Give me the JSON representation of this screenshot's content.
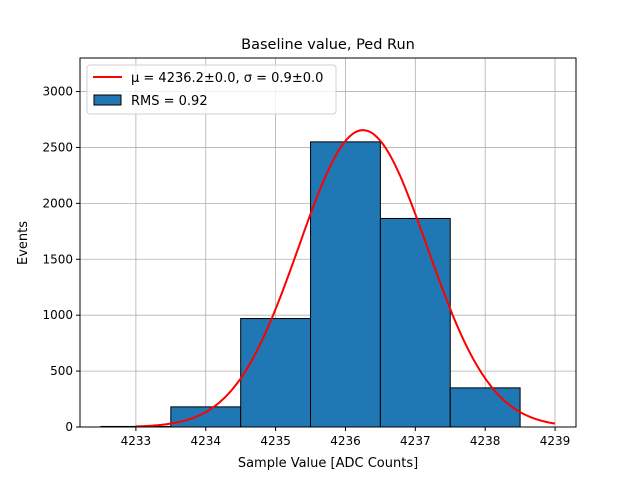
{
  "chart_data": {
    "type": "bar",
    "title": "Baseline value, Ped Run",
    "xlabel": "Sample Value [ADC Counts]",
    "ylabel": "Events",
    "xlim": [
      4232.2,
      4239.3
    ],
    "ylim": [
      0,
      3300
    ],
    "xticks": [
      4233,
      4234,
      4235,
      4236,
      4237,
      4238,
      4239
    ],
    "yticks": [
      0,
      500,
      1000,
      1500,
      2000,
      2500,
      3000
    ],
    "grid": true,
    "legend_position": "top-left",
    "bins": [
      {
        "low": 4232.5,
        "high": 4233.5,
        "value": 5
      },
      {
        "low": 4233.5,
        "high": 4234.5,
        "value": 180
      },
      {
        "low": 4234.5,
        "high": 4235.5,
        "value": 970
      },
      {
        "low": 4235.5,
        "high": 4236.5,
        "value": 2550
      },
      {
        "low": 4236.5,
        "high": 4237.5,
        "value": 1865
      },
      {
        "low": 4237.5,
        "high": 4238.5,
        "value": 350
      }
    ],
    "fit": {
      "amplitude": 2655,
      "mean": 4236.25,
      "sigma": 0.92,
      "x_range": [
        4233,
        4239
      ]
    },
    "legend": [
      {
        "label": "μ = 4236.2±0.0, σ = 0.9±0.0",
        "color": "#ff0000",
        "kind": "line"
      },
      {
        "label": "RMS = 0.92",
        "color": "#1f77b4",
        "kind": "patch"
      }
    ],
    "colors": {
      "bar": "#1f77b4",
      "fit": "#ff0000",
      "grid": "#b0b0b0"
    }
  }
}
